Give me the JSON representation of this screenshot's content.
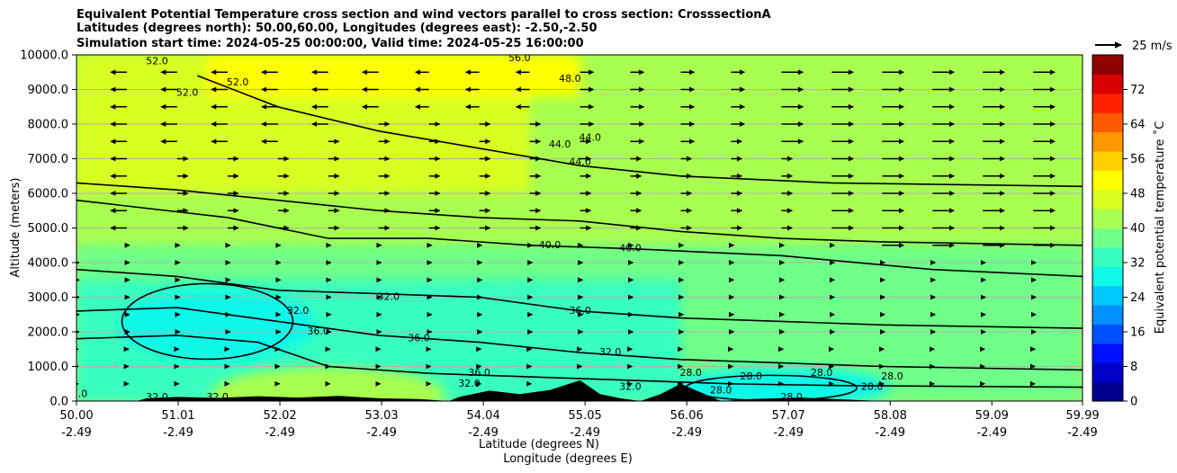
{
  "chart_data": {
    "type": "heatmap",
    "title_lines": [
      "Equivalent Potential Temperature cross section and wind vectors parallel to cross section: CrosssectionA",
      "Latitudes (degrees north): 50.00,60.00, Longitudes (degrees east): -2.50,-2.50",
      "Simulation start time: 2024-05-25 00:00:00, Valid time: 2024-05-25 16:00:00"
    ],
    "xlabel_line1": "Latitude (degrees N)",
    "xlabel_line2": "Longitude (degrees E)",
    "ylabel": "Altitude (meters)",
    "x_range": [
      50.0,
      59.99
    ],
    "ylim": [
      0,
      10000
    ],
    "x_ticks": [
      {
        "lat": "50.00",
        "lon": "-2.49",
        "v": 50.0
      },
      {
        "lat": "51.01",
        "lon": "-2.49",
        "v": 51.01
      },
      {
        "lat": "52.02",
        "lon": "-2.49",
        "v": 52.02
      },
      {
        "lat": "53.03",
        "lon": "-2.49",
        "v": 53.03
      },
      {
        "lat": "54.04",
        "lon": "-2.49",
        "v": 54.04
      },
      {
        "lat": "55.05",
        "lon": "-2.49",
        "v": 55.05
      },
      {
        "lat": "56.06",
        "lon": "-2.49",
        "v": 56.06
      },
      {
        "lat": "57.07",
        "lon": "-2.49",
        "v": 57.07
      },
      {
        "lat": "58.08",
        "lon": "-2.49",
        "v": 58.08
      },
      {
        "lat": "59.09",
        "lon": "-2.49",
        "v": 59.09
      },
      {
        "lat": "59.99",
        "lon": "-2.49",
        "v": 59.99
      }
    ],
    "y_ticks": [
      "0.0",
      "1000.0",
      "2000.0",
      "3000.0",
      "4000.0",
      "5000.0",
      "6000.0",
      "7000.0",
      "8000.0",
      "9000.0",
      "10000.0"
    ],
    "grid": "horizontal",
    "colorbar": {
      "label": "Equivalent potential temperature ˚C",
      "range": [
        0,
        80
      ],
      "ticks": [
        0,
        8,
        16,
        24,
        32,
        40,
        48,
        56,
        64,
        72
      ],
      "colors": [
        "#00008f",
        "#0000c8",
        "#0010ff",
        "#0050ff",
        "#0090ff",
        "#00c8ff",
        "#10f8e8",
        "#38ffc0",
        "#70ff88",
        "#a8ff50",
        "#d8ff20",
        "#ffff00",
        "#ffd000",
        "#ff9800",
        "#ff5a00",
        "#ff2000",
        "#d80000",
        "#8f0000"
      ]
    },
    "quiver_key": "25 m/s",
    "contour_levels": [
      28.0,
      32.0,
      36.0,
      40.0,
      44.0,
      48.0,
      52.0,
      56.0
    ],
    "contour_labels": [
      "56.0",
      "52.0",
      "52.0",
      "52.0",
      "48.0",
      "44.0",
      "44.0",
      "44.0",
      "40.0",
      "40.0",
      "36.0",
      "36.0",
      "36.0",
      "36.0",
      "32.0",
      "32.0",
      "32.0",
      "32.0",
      "32.0",
      "32.0",
      "28.0",
      "28.0",
      "28.0",
      "28.0",
      "28.0",
      "28.0",
      "28.0",
      "32.0",
      "32.0"
    ],
    "theta_e_field_note": [
      {
        "altitude_range_m": [
          9000,
          10000
        ],
        "lat_range": [
          51.0,
          55.0
        ],
        "value_c": 52
      },
      {
        "altitude_range_m": [
          6000,
          9500
        ],
        "lat_range": [
          50.0,
          53.0
        ],
        "value_c": 48
      },
      {
        "altitude_range_m": [
          4000,
          9000
        ],
        "lat_range": [
          53.0,
          59.99
        ],
        "value_c": 44
      },
      {
        "altitude_range_m": [
          1500,
          3000
        ],
        "lat_range": [
          50.5,
          52.5
        ],
        "value_c": 26
      },
      {
        "altitude_range_m": [
          0,
          1000
        ],
        "lat_range": [
          55.5,
          58.0
        ],
        "value_c": 30
      }
    ],
    "wind": {
      "upper_flow_m_s": [
        {
          "lat": 50.0,
          "altitude_m": 9500,
          "u": -6
        },
        {
          "lat": 52.0,
          "altitude_m": 9500,
          "u": -6
        },
        {
          "lat": 54.0,
          "altitude_m": 9500,
          "u": -5
        },
        {
          "lat": 55.5,
          "altitude_m": 9500,
          "u": 5
        },
        {
          "lat": 58.0,
          "altitude_m": 9500,
          "u": 8
        },
        {
          "lat": 54.0,
          "altitude_m": 7000,
          "u": 4
        },
        {
          "lat": 54.0,
          "altitude_m": 3000,
          "u": 1
        },
        {
          "lat": 54.0,
          "altitude_m": 500,
          "u": 0.5
        }
      ]
    }
  }
}
